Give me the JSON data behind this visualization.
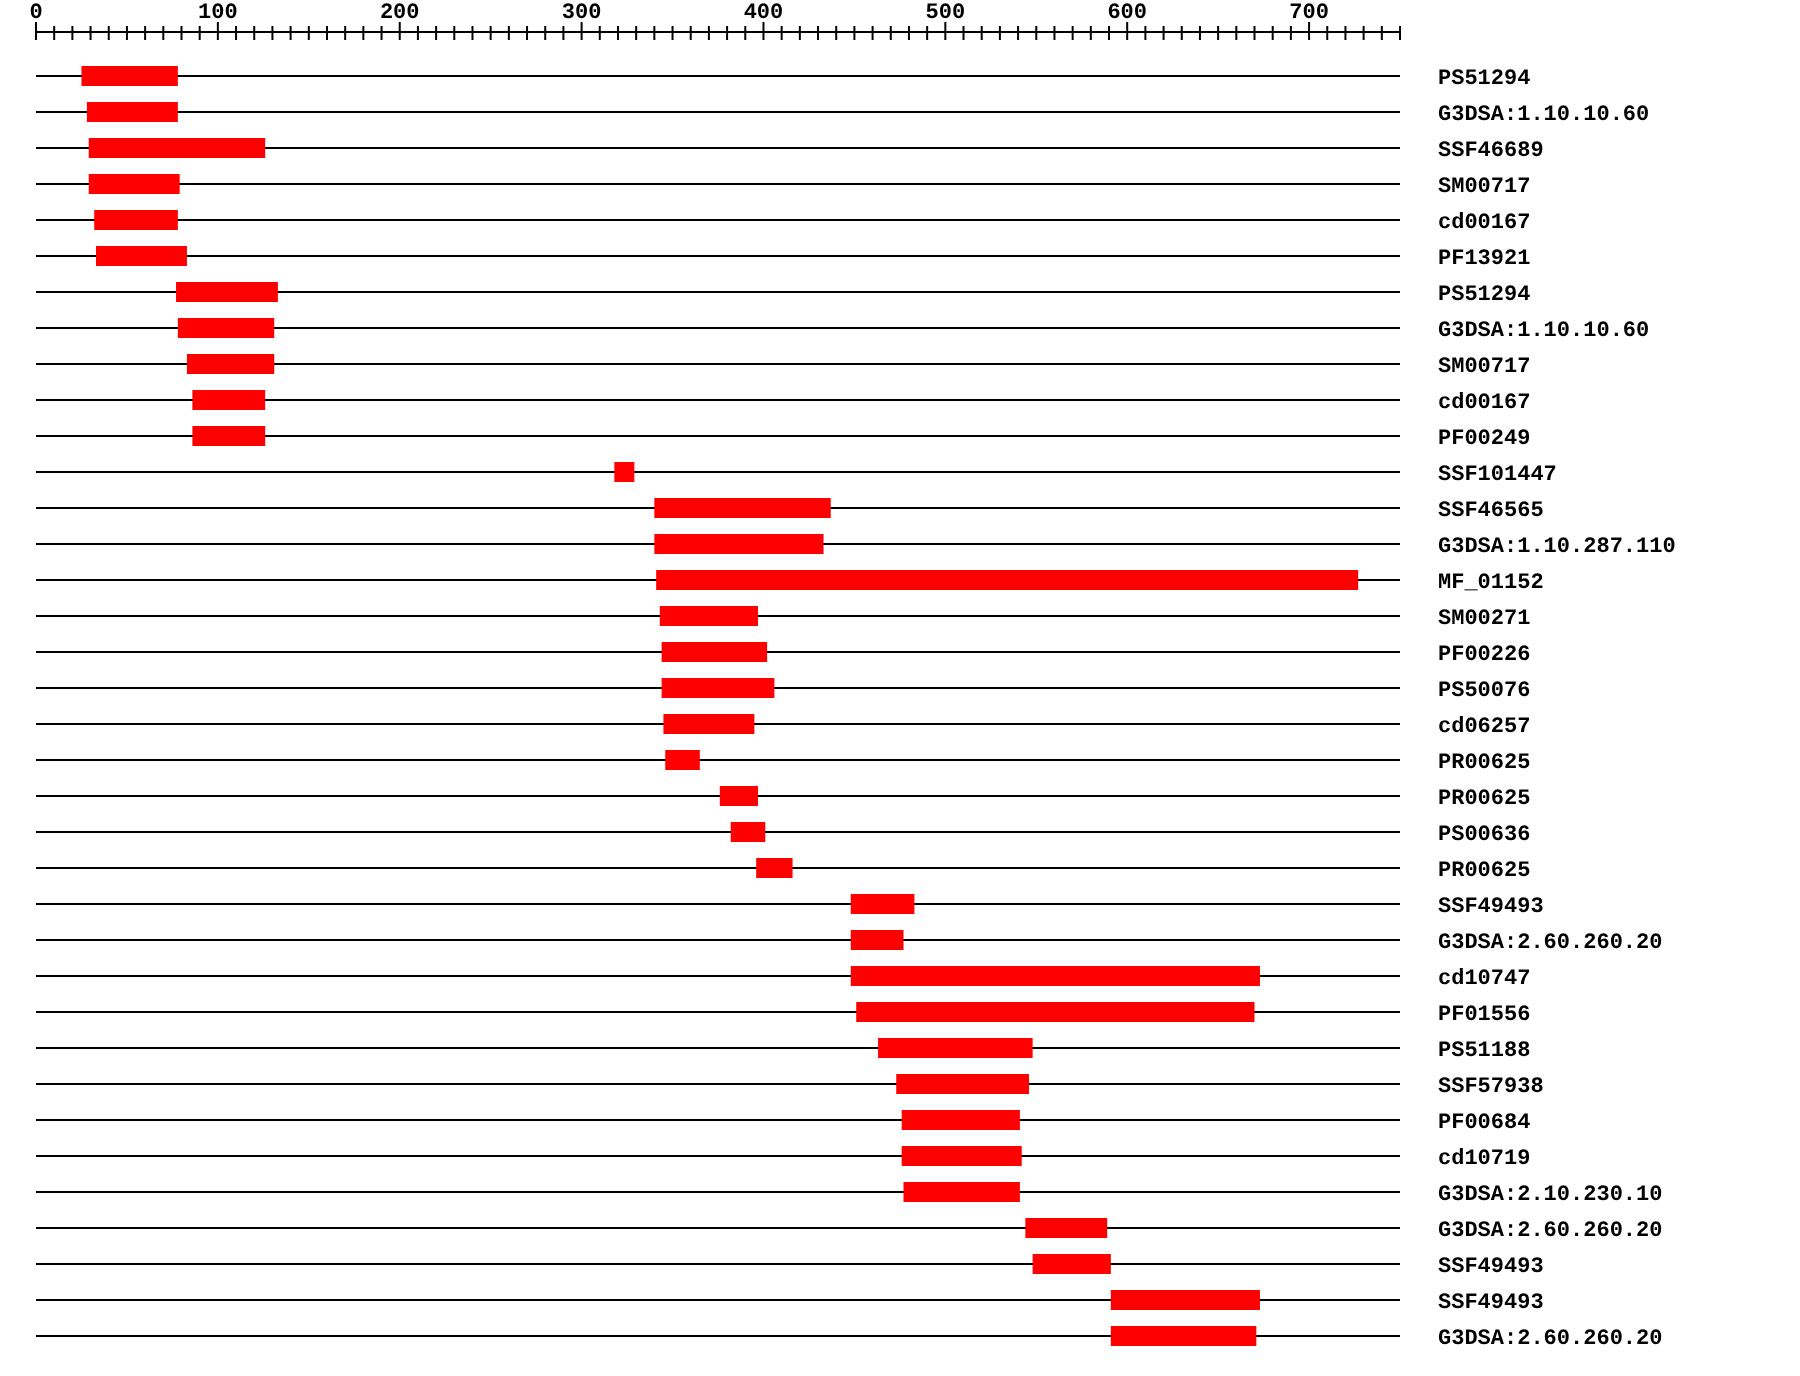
{
  "chart_data": {
    "type": "bar",
    "orientation": "horizontal",
    "grid": "y",
    "color": "#ff0000",
    "categories": [
      "PS51294",
      "G3DSA:1.10.10.60",
      "SSF46689",
      "SM00717",
      "cd00167",
      "PF13921",
      "PS51294",
      "G3DSA:1.10.10.60",
      "SM00717",
      "cd00167",
      "PF00249",
      "SSF101447",
      "SSF46565",
      "G3DSA:1.10.287.110",
      "MF_01152",
      "SM00271",
      "PF00226",
      "PS50076",
      "cd06257",
      "PR00625",
      "PR00625",
      "PS00636",
      "PR00625",
      "SSF49493",
      "G3DSA:2.60.260.20",
      "cd10747",
      "PF01556",
      "PS51188",
      "SSF57938",
      "PF00684",
      "cd10719",
      "G3DSA:2.10.230.10",
      "G3DSA:2.60.260.20",
      "SSF49493",
      "SSF49493",
      "G3DSA:2.60.260.20"
    ],
    "base": [
      25,
      28,
      29,
      29,
      32,
      33,
      77,
      78,
      83,
      86,
      86,
      318,
      340,
      340,
      341,
      343,
      344,
      344,
      345,
      346,
      376,
      382,
      396,
      448,
      448,
      448,
      451,
      463,
      473,
      476,
      476,
      477,
      544,
      548,
      591,
      591
    ],
    "values": [
      53,
      50,
      97,
      50,
      46,
      50,
      56,
      53,
      48,
      40,
      40,
      11,
      97,
      93,
      386,
      54,
      58,
      62,
      50,
      19,
      21,
      19,
      20,
      35,
      29,
      225,
      219,
      85,
      73,
      65,
      66,
      64,
      45,
      43,
      82,
      80
    ],
    "xlim": [
      0,
      750
    ],
    "xticks": [
      0,
      {
        "value": 10,
        "label": null
      },
      {
        "value": 20,
        "label": null
      },
      {
        "value": 30,
        "label": null
      },
      {
        "value": 40,
        "label": null
      },
      {
        "value": 50,
        "label": null
      },
      {
        "value": 60,
        "label": null
      },
      {
        "value": 70,
        "label": null
      },
      {
        "value": 80,
        "label": null
      },
      {
        "value": 90,
        "label": null
      },
      100,
      {
        "value": 110,
        "label": null
      },
      {
        "value": 120,
        "label": null
      },
      {
        "value": 130,
        "label": null
      },
      {
        "value": 140,
        "label": null
      },
      {
        "value": 150,
        "label": null
      },
      {
        "value": 160,
        "label": null
      },
      {
        "value": 170,
        "label": null
      },
      {
        "value": 180,
        "label": null
      },
      {
        "value": 190,
        "label": null
      },
      200,
      {
        "value": 210,
        "label": null
      },
      {
        "value": 220,
        "label": null
      },
      {
        "value": 230,
        "label": null
      },
      {
        "value": 240,
        "label": null
      },
      {
        "value": 250,
        "label": null
      },
      {
        "value": 260,
        "label": null
      },
      {
        "value": 270,
        "label": null
      },
      {
        "value": 280,
        "label": null
      },
      {
        "value": 290,
        "label": null
      },
      300,
      {
        "value": 310,
        "label": null
      },
      {
        "value": 320,
        "label": null
      },
      {
        "value": 330,
        "label": null
      },
      {
        "value": 340,
        "label": null
      },
      {
        "value": 350,
        "label": null
      },
      {
        "value": 360,
        "label": null
      },
      {
        "value": 370,
        "label": null
      },
      {
        "value": 380,
        "label": null
      },
      {
        "value": 390,
        "label": null
      },
      400,
      {
        "value": 410,
        "label": null
      },
      {
        "value": 420,
        "label": null
      },
      {
        "value": 430,
        "label": null
      },
      {
        "value": 440,
        "label": null
      },
      {
        "value": 450,
        "label": null
      },
      {
        "value": 460,
        "label": null
      },
      {
        "value": 470,
        "label": null
      },
      {
        "value": 480,
        "label": null
      },
      {
        "value": 490,
        "label": null
      },
      500,
      {
        "value": 510,
        "label": null
      },
      {
        "value": 520,
        "label": null
      },
      {
        "value": 530,
        "label": null
      },
      {
        "value": 540,
        "label": null
      },
      {
        "value": 550,
        "label": null
      },
      {
        "value": 560,
        "label": null
      },
      {
        "value": 570,
        "label": null
      },
      {
        "value": 580,
        "label": null
      },
      {
        "value": 590,
        "label": null
      },
      600,
      {
        "value": 610,
        "label": null
      },
      {
        "value": 620,
        "label": null
      },
      {
        "value": 630,
        "label": null
      },
      {
        "value": 640,
        "label": null
      },
      {
        "value": 650,
        "label": null
      },
      {
        "value": 660,
        "label": null
      },
      {
        "value": 670,
        "label": null
      },
      {
        "value": 680,
        "label": null
      },
      {
        "value": 690,
        "label": null
      },
      700,
      {
        "value": 710,
        "label": null
      },
      {
        "value": 720,
        "label": null
      },
      {
        "value": 730,
        "label": null
      },
      {
        "value": 740,
        "label": null
      },
      {
        "value": 750,
        "label": null
      }
    ]
  }
}
